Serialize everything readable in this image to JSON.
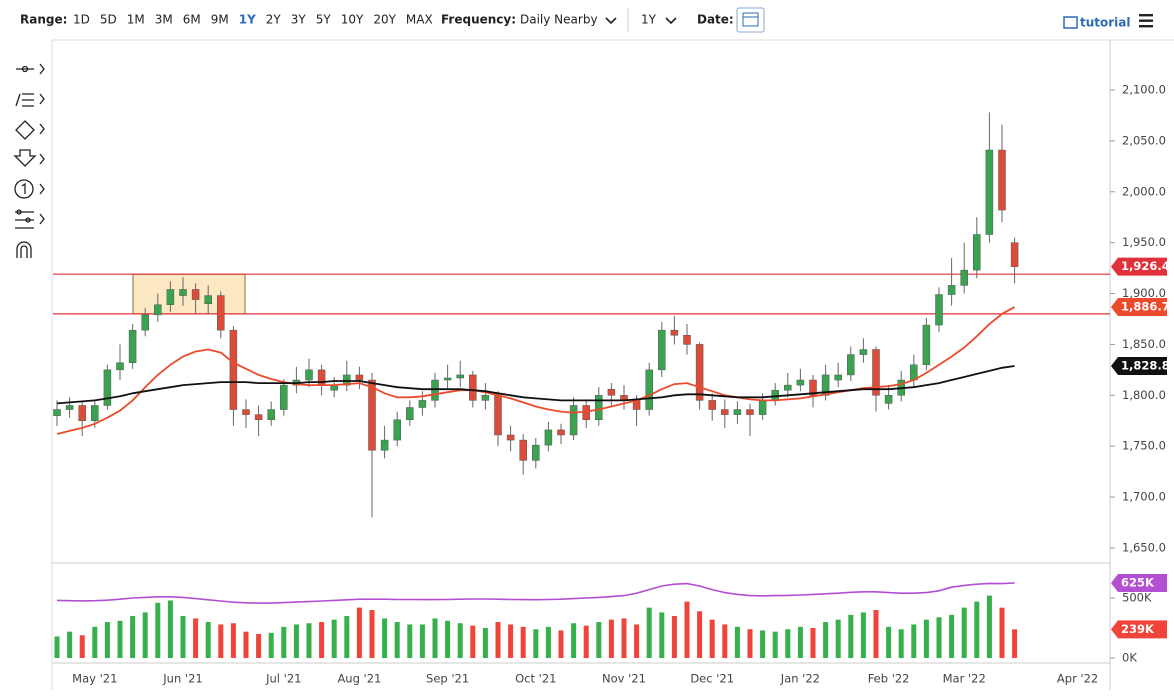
{
  "toolbar": {
    "range_label": "Range:",
    "ranges": [
      "1D",
      "5D",
      "1M",
      "3M",
      "6M",
      "9M",
      "1Y",
      "2Y",
      "3Y",
      "5Y",
      "10Y",
      "20Y",
      "MAX"
    ],
    "active_range": "1Y",
    "frequency_label": "Frequency:",
    "frequency": "Daily Nearby",
    "period": "1Y",
    "date_label": "Date:",
    "tutorial": "tutorial"
  },
  "chart_data": {
    "type": "candlestick",
    "categories": [
      null,
      null,
      null,
      "May '21",
      null,
      null,
      null,
      null,
      null,
      null,
      "Jun '21",
      null,
      null,
      null,
      null,
      null,
      null,
      null,
      "Jul '21",
      null,
      null,
      null,
      null,
      null,
      "Aug '21",
      null,
      null,
      null,
      null,
      null,
      null,
      "Sep '21",
      null,
      null,
      null,
      null,
      null,
      null,
      "Oct '21",
      null,
      null,
      null,
      null,
      null,
      null,
      "Nov '21",
      null,
      null,
      null,
      null,
      null,
      null,
      "Dec '21",
      null,
      null,
      null,
      null,
      null,
      null,
      "Jan '22",
      null,
      null,
      null,
      null,
      null,
      null,
      "Feb '22",
      null,
      null,
      null,
      null,
      null,
      "Mar '22",
      null,
      null,
      null,
      null,
      null,
      null,
      null,
      null,
      "Apr '22"
    ],
    "open": [
      1780,
      1786,
      1790,
      1775,
      1790,
      1825,
      1832,
      1864,
      1879,
      1889,
      1898,
      1904,
      1890,
      1898,
      1864,
      1786,
      1781,
      1776,
      1786,
      1810,
      1815,
      1825,
      1805,
      1810,
      1820,
      1815,
      1746,
      1756,
      1776,
      1788,
      1795,
      1815,
      1817,
      1820,
      1795,
      1800,
      1761,
      1756,
      1736,
      1751,
      1766,
      1761,
      1790,
      1776,
      1806,
      1800,
      1795,
      1786,
      1825,
      1864,
      1859,
      1850,
      1795,
      1786,
      1781,
      1786,
      1781,
      1795,
      1805,
      1810,
      1815,
      1800,
      1815,
      1820,
      1840,
      1845,
      1792,
      1800,
      1815,
      1830,
      1869,
      1899,
      1908,
      1923,
      1958,
      2041,
      1950,
      null,
      null,
      null,
      null,
      null
    ],
    "high": [
      1795,
      1798,
      1794,
      1796,
      1830,
      1850,
      1870,
      1886,
      1900,
      1912,
      1916,
      1910,
      1908,
      1902,
      1868,
      1796,
      1790,
      1794,
      1816,
      1828,
      1836,
      1830,
      1818,
      1834,
      1828,
      1822,
      1770,
      1784,
      1795,
      1804,
      1822,
      1830,
      1834,
      1824,
      1812,
      1804,
      1770,
      1762,
      1758,
      1774,
      1772,
      1798,
      1796,
      1808,
      1812,
      1810,
      1800,
      1832,
      1872,
      1878,
      1870,
      1852,
      1802,
      1796,
      1794,
      1792,
      1802,
      1812,
      1822,
      1826,
      1820,
      1830,
      1832,
      1848,
      1856,
      1848,
      1810,
      1824,
      1840,
      1876,
      1906,
      1935,
      1950,
      1975,
      2078,
      2066,
      1955,
      null,
      null,
      null,
      null,
      null
    ],
    "low": [
      1770,
      1778,
      1760,
      1768,
      1786,
      1815,
      1826,
      1858,
      1872,
      1882,
      1888,
      1880,
      1880,
      1856,
      1770,
      1768,
      1760,
      1770,
      1780,
      1802,
      1808,
      1800,
      1798,
      1804,
      1806,
      1680,
      1738,
      1750,
      1770,
      1780,
      1788,
      1806,
      1808,
      1788,
      1786,
      1750,
      1745,
      1722,
      1728,
      1745,
      1752,
      1756,
      1768,
      1770,
      1790,
      1786,
      1770,
      1780,
      1818,
      1850,
      1840,
      1786,
      1775,
      1768,
      1772,
      1760,
      1776,
      1790,
      1798,
      1804,
      1788,
      1795,
      1808,
      1814,
      1832,
      1784,
      1786,
      1794,
      1808,
      1825,
      1862,
      1888,
      1900,
      1915,
      1950,
      1970,
      1910,
      null,
      null,
      null,
      null,
      null
    ],
    "close": [
      1786,
      1790,
      1775,
      1790,
      1825,
      1832,
      1864,
      1879,
      1889,
      1904,
      1904,
      1894,
      1898,
      1864,
      1786,
      1781,
      1776,
      1786,
      1810,
      1815,
      1825,
      1810,
      1810,
      1820,
      1815,
      1746,
      1756,
      1776,
      1788,
      1795,
      1815,
      1817,
      1820,
      1795,
      1800,
      1761,
      1756,
      1736,
      1751,
      1766,
      1761,
      1790,
      1776,
      1800,
      1800,
      1795,
      1786,
      1825,
      1864,
      1859,
      1850,
      1795,
      1786,
      1781,
      1786,
      1781,
      1795,
      1805,
      1810,
      1815,
      1800,
      1820,
      1820,
      1840,
      1845,
      1800,
      1800,
      1815,
      1830,
      1869,
      1899,
      1908,
      1923,
      1958,
      2041,
      1982,
      1926.4,
      null,
      null,
      null,
      null,
      null
    ],
    "close_label": "1,926.4",
    "up_color": "#3aa34f",
    "down_color": "#dd4b39",
    "levels": [
      1919,
      1880
    ],
    "level_color": "#e0303a",
    "overlays": [
      {
        "color": "#ec4a2c",
        "last_label": "1,886.7",
        "values": [
          1762,
          1765,
          1768,
          1772,
          1778,
          1785,
          1795,
          1808,
          1820,
          1830,
          1838,
          1843,
          1845,
          1842,
          1832,
          1826,
          1820,
          1816,
          1813,
          1811,
          1810,
          1810,
          1810,
          1811,
          1812,
          1808,
          1802,
          1798,
          1798,
          1799,
          1801,
          1803,
          1805,
          1805,
          1803,
          1800,
          1797,
          1793,
          1789,
          1786,
          1784,
          1783,
          1784,
          1786,
          1789,
          1792,
          1795,
          1800,
          1806,
          1811,
          1812,
          1808,
          1804,
          1800,
          1798,
          1796,
          1795,
          1795,
          1796,
          1797,
          1799,
          1801,
          1803,
          1805,
          1807,
          1808,
          1809,
          1811,
          1815,
          1822,
          1830,
          1838,
          1847,
          1858,
          1870,
          1880,
          1886.7,
          null,
          null,
          null,
          null,
          null
        ]
      },
      {
        "color": "#111111",
        "last_label": "1,828.8",
        "values": [
          1792,
          1793,
          1794,
          1795,
          1797,
          1799,
          1802,
          1804,
          1806,
          1808,
          1810,
          1811,
          1812,
          1813,
          1813,
          1813,
          1812,
          1812,
          1812,
          1812,
          1813,
          1813,
          1814,
          1814,
          1814,
          1812,
          1810,
          1808,
          1807,
          1806,
          1806,
          1806,
          1806,
          1805,
          1804,
          1802,
          1800,
          1798,
          1797,
          1796,
          1795,
          1795,
          1795,
          1795,
          1795,
          1795,
          1796,
          1797,
          1798,
          1800,
          1801,
          1801,
          1800,
          1799,
          1798,
          1798,
          1798,
          1799,
          1800,
          1801,
          1802,
          1803,
          1804,
          1805,
          1806,
          1806,
          1806,
          1807,
          1808,
          1810,
          1812,
          1815,
          1818,
          1821,
          1824,
          1827,
          1828.8,
          null,
          null,
          null,
          null,
          null
        ]
      }
    ],
    "ylim": [
      1636.2,
      2144.2
    ],
    "yticks": [
      {
        "value": 1650,
        "label": "1,650.0"
      },
      {
        "value": 1700,
        "label": "1,700.0"
      },
      {
        "value": 1750,
        "label": "1,750.0"
      },
      {
        "value": 1800,
        "label": "1,800.0"
      },
      {
        "value": 1850,
        "label": "1,850.0"
      },
      {
        "value": 1900,
        "label": "1,900.0"
      },
      {
        "value": 1950,
        "label": "1,950.0"
      },
      {
        "value": 2000,
        "label": "2,000.0"
      },
      {
        "value": 2050,
        "label": "2,050.0"
      },
      {
        "value": 2100,
        "label": "2,100.0"
      }
    ],
    "volume": {
      "up_color": "#35b04a",
      "down_color": "#f0433a",
      "last_label": "239K",
      "values": [
        180000,
        220000,
        190000,
        260000,
        300000,
        310000,
        350000,
        380000,
        460000,
        480000,
        350000,
        330000,
        300000,
        280000,
        290000,
        220000,
        200000,
        210000,
        260000,
        280000,
        290000,
        300000,
        320000,
        350000,
        420000,
        400000,
        330000,
        300000,
        280000,
        280000,
        330000,
        310000,
        290000,
        270000,
        250000,
        300000,
        280000,
        260000,
        240000,
        260000,
        230000,
        290000,
        270000,
        300000,
        320000,
        330000,
        280000,
        420000,
        380000,
        350000,
        470000,
        390000,
        320000,
        280000,
        260000,
        240000,
        230000,
        220000,
        240000,
        260000,
        250000,
        300000,
        320000,
        360000,
        380000,
        400000,
        260000,
        240000,
        280000,
        320000,
        340000,
        360000,
        420000,
        470000,
        520000,
        420000,
        239000,
        null,
        null,
        null,
        null,
        null
      ],
      "ma": {
        "color": "#b44fd4",
        "last_label": "625K",
        "values": [
          480000,
          478000,
          476000,
          478000,
          482000,
          490000,
          500000,
          505000,
          510000,
          510000,
          505000,
          495000,
          485000,
          475000,
          465000,
          460000,
          458000,
          458000,
          462000,
          466000,
          470000,
          475000,
          480000,
          485000,
          490000,
          490000,
          490000,
          488000,
          488000,
          487000,
          487000,
          488000,
          490000,
          492000,
          492000,
          490000,
          488000,
          487000,
          486000,
          488000,
          490000,
          495000,
          500000,
          505000,
          512000,
          520000,
          540000,
          570000,
          600000,
          615000,
          620000,
          600000,
          570000,
          545000,
          530000,
          520000,
          518000,
          520000,
          522000,
          525000,
          530000,
          535000,
          540000,
          548000,
          552000,
          552000,
          545000,
          540000,
          540000,
          545000,
          560000,
          590000,
          605000,
          615000,
          622000,
          620000,
          625000,
          null,
          null,
          null,
          null,
          null
        ]
      },
      "ylim": [
        -33000,
        767000
      ],
      "yticks": [
        {
          "value": 0,
          "label": "0K"
        },
        {
          "value": 500000,
          "label": "500K"
        }
      ]
    }
  }
}
